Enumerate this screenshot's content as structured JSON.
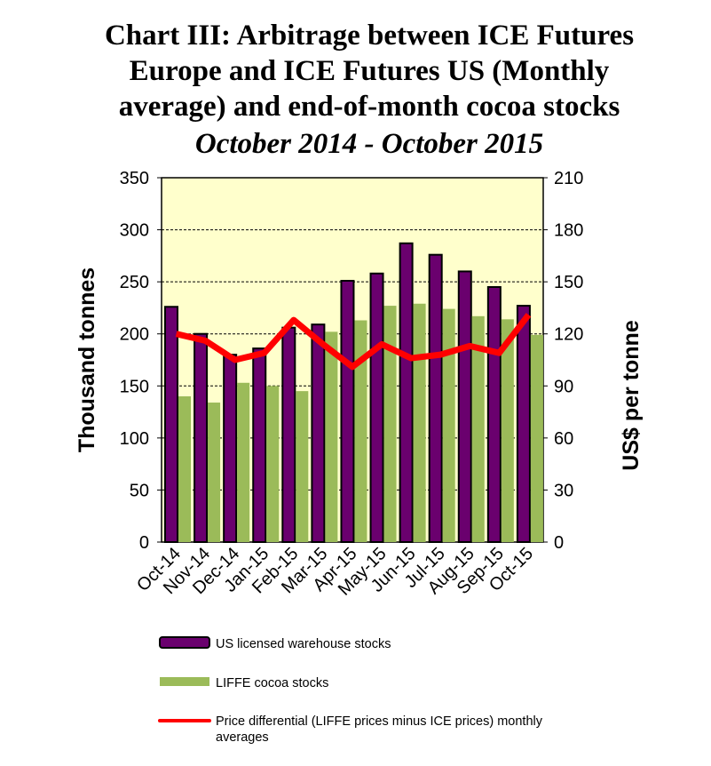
{
  "chart_data": {
    "type": "bar",
    "title": [
      "Chart III: Arbitrage between ICE Futures",
      "Europe and ICE Futures US (Monthly",
      "average) and end-of-month cocoa stocks"
    ],
    "subtitle": "October 2014 - October 2015",
    "categories": [
      "Oct-14",
      "Nov-14",
      "Dec-14",
      "Jan-15",
      "Feb-15",
      "Mar-15",
      "Apr-15",
      "May-15",
      "Jun-15",
      "Jul-15",
      "Aug-15",
      "Sep-15",
      "Oct-15"
    ],
    "ylabel": "Thousand tonnes",
    "y2label": "US$ per tonne",
    "ylim": [
      0,
      350
    ],
    "y2lim": [
      0,
      210
    ],
    "yticks": [
      0,
      50,
      100,
      150,
      200,
      250,
      300,
      350
    ],
    "y2ticks": [
      0,
      30,
      60,
      90,
      120,
      150,
      180,
      210
    ],
    "grid": true,
    "legend_position": "bottom",
    "series": [
      {
        "name": "US licensed warehouse stocks",
        "type": "bar",
        "axis": "left",
        "color": "#6a006e",
        "values": [
          226,
          200,
          180,
          186,
          206,
          209,
          251,
          258,
          287,
          276,
          260,
          245,
          227
        ]
      },
      {
        "name": "LIFFE cocoa stocks",
        "type": "bar",
        "axis": "left",
        "color": "#9bbb59",
        "values": [
          140,
          134,
          153,
          150,
          145,
          202,
          213,
          227,
          229,
          224,
          217,
          214,
          199
        ]
      },
      {
        "name_lines": [
          "Price differential (LIFFE prices minus ICE prices) monthly",
          "averages"
        ],
        "type": "line",
        "axis": "right",
        "color": "#ff0000",
        "values": [
          120,
          116,
          105,
          109,
          128,
          114,
          101,
          114,
          106,
          108,
          113,
          109,
          131
        ]
      }
    ],
    "plot_bg": "#ffffcc"
  }
}
